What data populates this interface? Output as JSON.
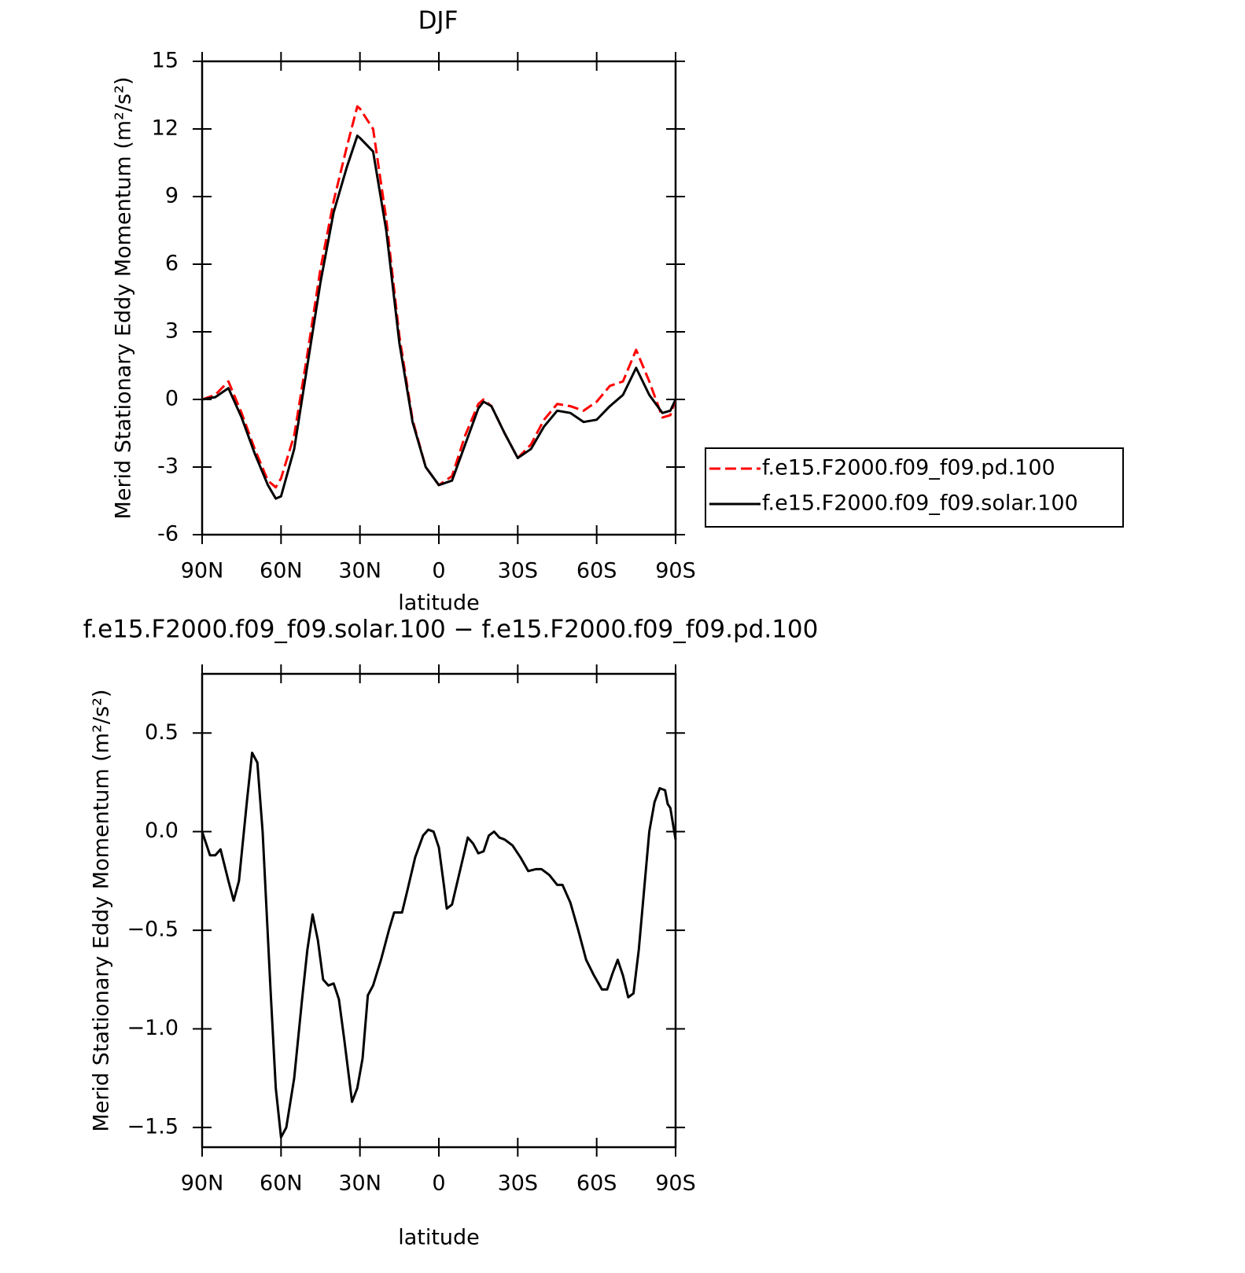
{
  "chart_data": [
    {
      "type": "line",
      "title": "DJF",
      "xlabel": "latitude",
      "ylabel": "Merid Stationary Eddy Momentum (m²/s²)",
      "x": [
        90,
        85,
        80,
        75,
        70,
        65,
        62,
        60,
        55,
        50,
        45,
        40,
        35,
        31,
        30,
        25,
        20,
        15,
        10,
        5,
        0,
        -5,
        -10,
        -15,
        -17,
        -20,
        -25,
        -30,
        -35,
        -40,
        -45,
        -50,
        -55,
        -60,
        -65,
        -70,
        -75,
        -80,
        -85,
        -88,
        -90
      ],
      "series": [
        {
          "name": "f.e15.F2000.f09_f09.pd.100",
          "color": "#ff0000",
          "line_style": "dashed",
          "values": [
            0,
            0.2,
            0.8,
            -0.6,
            -2.2,
            -3.6,
            -3.9,
            -3.5,
            -1.6,
            2.0,
            5.8,
            8.8,
            11.2,
            13.0,
            12.9,
            12.0,
            8.0,
            2.8,
            -0.9,
            -3.0,
            -3.8,
            -3.4,
            -1.6,
            -0.2,
            0.0,
            -0.3,
            -1.5,
            -2.6,
            -2.0,
            -0.9,
            -0.2,
            -0.3,
            -0.5,
            -0.1,
            0.6,
            0.8,
            2.2,
            0.8,
            -0.8,
            -0.7,
            0
          ]
        },
        {
          "name": "f.e15.F2000.f09_f09.solar.100",
          "color": "#000000",
          "line_style": "solid",
          "values": [
            0,
            0.1,
            0.5,
            -0.8,
            -2.4,
            -3.8,
            -4.4,
            -4.3,
            -2.2,
            1.5,
            5.2,
            8.3,
            10.3,
            11.7,
            11.6,
            11.0,
            7.5,
            2.5,
            -1.0,
            -3.0,
            -3.8,
            -3.6,
            -2.0,
            -0.4,
            -0.1,
            -0.3,
            -1.5,
            -2.6,
            -2.2,
            -1.2,
            -0.5,
            -0.6,
            -1.0,
            -0.9,
            -0.3,
            0.2,
            1.4,
            0.2,
            -0.6,
            -0.5,
            0
          ]
        }
      ],
      "xlim": [
        90,
        -90
      ],
      "xticks": [
        {
          "value": 90,
          "label": "90N"
        },
        {
          "value": 60,
          "label": "60N"
        },
        {
          "value": 30,
          "label": "30N"
        },
        0,
        {
          "value": -30,
          "label": "30S"
        },
        {
          "value": -60,
          "label": "60S"
        },
        {
          "value": -90,
          "label": "90S"
        }
      ],
      "ylim": [
        -6,
        15
      ],
      "yticks": [
        -6,
        -3,
        0,
        3,
        6,
        9,
        12,
        15
      ],
      "legend": "right"
    },
    {
      "type": "line",
      "title": "f.e15.F2000.f09_f09.solar.100 − f.e15.F2000.f09_f09.pd.100",
      "xlabel": "latitude",
      "ylabel": "Merid Stationary Eddy Momentum (m²/s²)",
      "x": [
        90,
        87,
        85,
        83,
        80,
        78,
        76,
        73,
        71,
        69,
        67,
        64,
        62,
        60,
        58,
        55,
        52,
        50,
        48,
        46,
        44,
        42,
        40,
        38,
        36,
        33,
        31,
        29,
        27,
        25,
        22,
        19,
        17,
        14,
        12,
        9,
        6,
        4,
        2,
        0,
        -2,
        -3,
        -5,
        -8,
        -11,
        -13,
        -15,
        -17,
        -19,
        -21,
        -23,
        -25,
        -28,
        -31,
        -34,
        -37,
        -39,
        -42,
        -45,
        -47,
        -50,
        -53,
        -56,
        -59,
        -62,
        -64,
        -66,
        -68,
        -70,
        -72,
        -74,
        -76,
        -78,
        -80,
        -82,
        -84,
        -86,
        -87,
        -88,
        -90
      ],
      "series": [
        {
          "color": "#000000",
          "line_style": "solid",
          "values": [
            0.0,
            -0.12,
            -0.12,
            -0.09,
            -0.25,
            -0.35,
            -0.25,
            0.15,
            0.4,
            0.35,
            0.0,
            -0.8,
            -1.3,
            -1.55,
            -1.5,
            -1.25,
            -0.85,
            -0.6,
            -0.42,
            -0.55,
            -0.75,
            -0.78,
            -0.77,
            -0.85,
            -1.05,
            -1.37,
            -1.3,
            -1.15,
            -0.83,
            -0.78,
            -0.65,
            -0.5,
            -0.41,
            -0.41,
            -0.3,
            -0.13,
            -0.02,
            0.01,
            0.0,
            -0.08,
            -0.28,
            -0.39,
            -0.37,
            -0.2,
            -0.03,
            -0.06,
            -0.11,
            -0.1,
            -0.02,
            0.0,
            -0.03,
            -0.04,
            -0.07,
            -0.13,
            -0.2,
            -0.19,
            -0.19,
            -0.22,
            -0.27,
            -0.27,
            -0.36,
            -0.5,
            -0.65,
            -0.73,
            -0.8,
            -0.8,
            -0.72,
            -0.65,
            -0.73,
            -0.84,
            -0.82,
            -0.6,
            -0.3,
            0.0,
            0.15,
            0.22,
            0.21,
            0.14,
            0.12,
            -0.04
          ]
        }
      ],
      "xlim": [
        90,
        -90
      ],
      "xticks": [
        {
          "value": 90,
          "label": "90N"
        },
        {
          "value": 60,
          "label": "60N"
        },
        {
          "value": 30,
          "label": "30N"
        },
        0,
        {
          "value": -30,
          "label": "30S"
        },
        {
          "value": -60,
          "label": "60S"
        },
        {
          "value": -90,
          "label": "90S"
        }
      ],
      "ylim": [
        -1.6,
        0.8
      ],
      "yticks": [
        {
          "value": -1.5,
          "label": "−1.5"
        },
        {
          "value": -1.0,
          "label": "−1.0"
        },
        {
          "value": -0.5,
          "label": "−0.5"
        },
        {
          "value": 0.0,
          "label": "0.0"
        },
        {
          "value": 0.5,
          "label": "0.5"
        }
      ]
    }
  ]
}
